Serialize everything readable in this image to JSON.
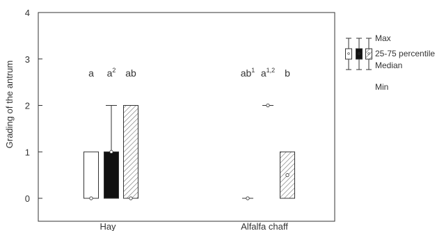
{
  "chart_data": {
    "type": "boxplot",
    "ylabel": "Grading of the antrum",
    "ylim": [
      0,
      4
    ],
    "yticks": [
      "0",
      "1",
      "2",
      "3",
      "4"
    ],
    "categories": [
      "Hay",
      "Alfalfa chaff"
    ],
    "series_styles": [
      "open",
      "solid",
      "hatched"
    ],
    "groups": [
      {
        "category": "Hay",
        "boxes": [
          {
            "style": "open",
            "min": 0,
            "q1": 0,
            "median": 0,
            "q3": 1,
            "max": 1,
            "letter": "a",
            "sup": ""
          },
          {
            "style": "solid",
            "min": 0,
            "q1": 0,
            "median": 1,
            "q3": 1,
            "max": 2,
            "letter": "a",
            "sup": "2"
          },
          {
            "style": "hatched",
            "min": 0,
            "q1": 0,
            "median": 0,
            "q3": 2,
            "max": 2,
            "letter": "ab",
            "sup": ""
          }
        ]
      },
      {
        "category": "Alfalfa chaff",
        "boxes": [
          {
            "style": "open",
            "min": 0,
            "q1": 0,
            "median": 0,
            "q3": 0,
            "max": 0,
            "letter": "ab",
            "sup": "1"
          },
          {
            "style": "solid",
            "min": 2,
            "q1": 2,
            "median": 2,
            "q3": 2,
            "max": 2,
            "letter": "a",
            "sup": "1,2"
          },
          {
            "style": "hatched",
            "min": 0,
            "q1": 0,
            "median": 0.5,
            "q3": 1,
            "max": 1,
            "letter": "b",
            "sup": ""
          }
        ]
      }
    ],
    "legend": {
      "position": "top-right",
      "labels": {
        "max": "Max",
        "box": "25-75 percentile",
        "median": "Median",
        "min": "Min"
      }
    },
    "grid": false
  },
  "colors": {
    "axis": "#333333",
    "solid_fill": "#111111",
    "hatch": "#777777"
  }
}
